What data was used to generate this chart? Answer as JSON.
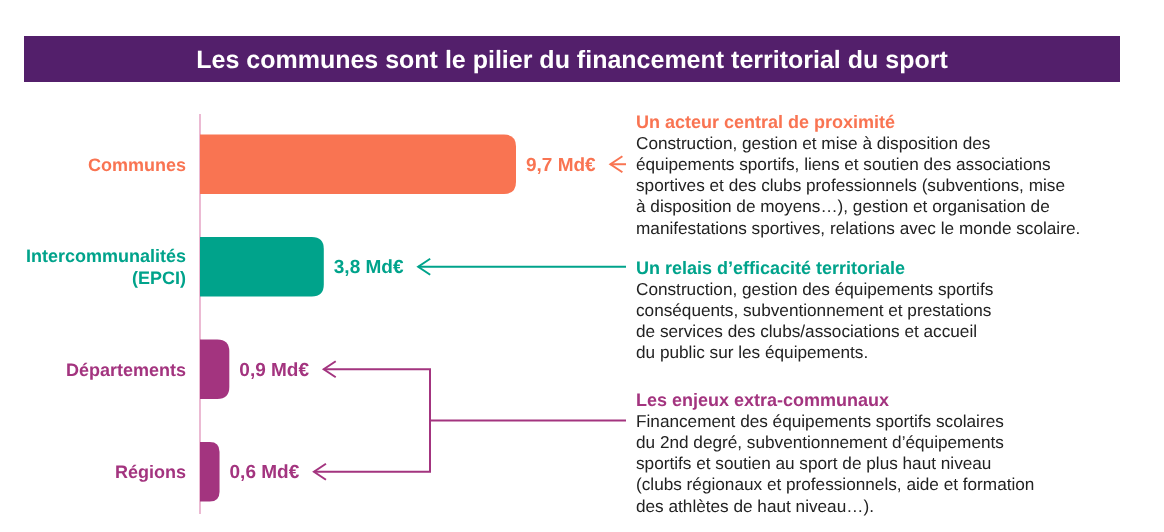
{
  "chart_data": {
    "type": "bar",
    "orientation": "horizontal",
    "title": "Les communes sont le pilier du financement territorial du sport",
    "categories": [
      "Communes",
      "Intercommunalités (EPCI)",
      "Départements",
      "Régions"
    ],
    "values": [
      9.7,
      3.8,
      0.9,
      0.6
    ],
    "value_labels": [
      "9,7 Md€",
      "3,8 Md€",
      "0,9 Md€",
      "0,6 Md€"
    ],
    "colors": [
      "#f97452",
      "#00a38b",
      "#a3347f",
      "#a3347f"
    ],
    "annotations": [
      "Un acteur central de proximité",
      "Construction, gestion et mise à disposition des\néquipements sportifs, liens et soutien des associations\nsportives et des clubs professionnels (subventions, mise\nà disposition de moyens…), gestion et organisation de\nmanifestations sportives, relations avec le monde scolaire.",
      "Un relais d’efficacité territoriale",
      "Construction, gestion des équipements sportifs\nconséquents, subventionnement et prestations\nde services des clubs/associations et accueil\ndu public sur les équipements.",
      "Les enjeux extra-communaux",
      "Financement des équipements sportifs scolaires\ndu 2nd degré, subventionnement d’équipements\nsportifs et soutien au sport de plus haut niveau\n(clubs régionaux et professionnels, aide et formation\ndes athlètes de haut niveau…)."
    ]
  }
}
